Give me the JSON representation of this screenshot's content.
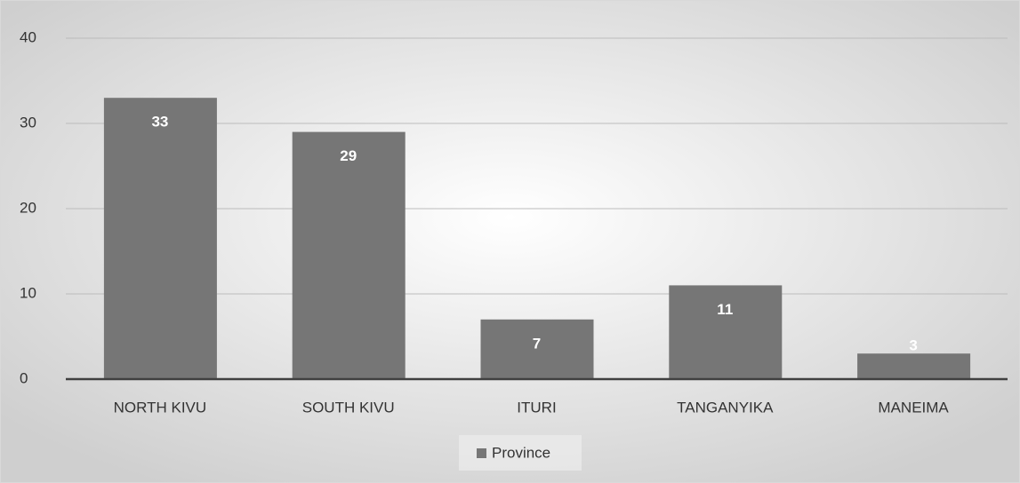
{
  "chart_data": {
    "type": "bar",
    "categories": [
      "NORTH KIVU",
      "SOUTH KIVU",
      "ITURI",
      "TANGANYIKA",
      "MANEIMA"
    ],
    "series": [
      {
        "name": "Province",
        "color": "#767676",
        "values": [
          33,
          29,
          7,
          11,
          3
        ]
      }
    ],
    "ylim": [
      0,
      40
    ],
    "yticks": [
      0,
      10,
      20,
      30,
      40
    ],
    "grid": true,
    "legend": "bottom"
  }
}
